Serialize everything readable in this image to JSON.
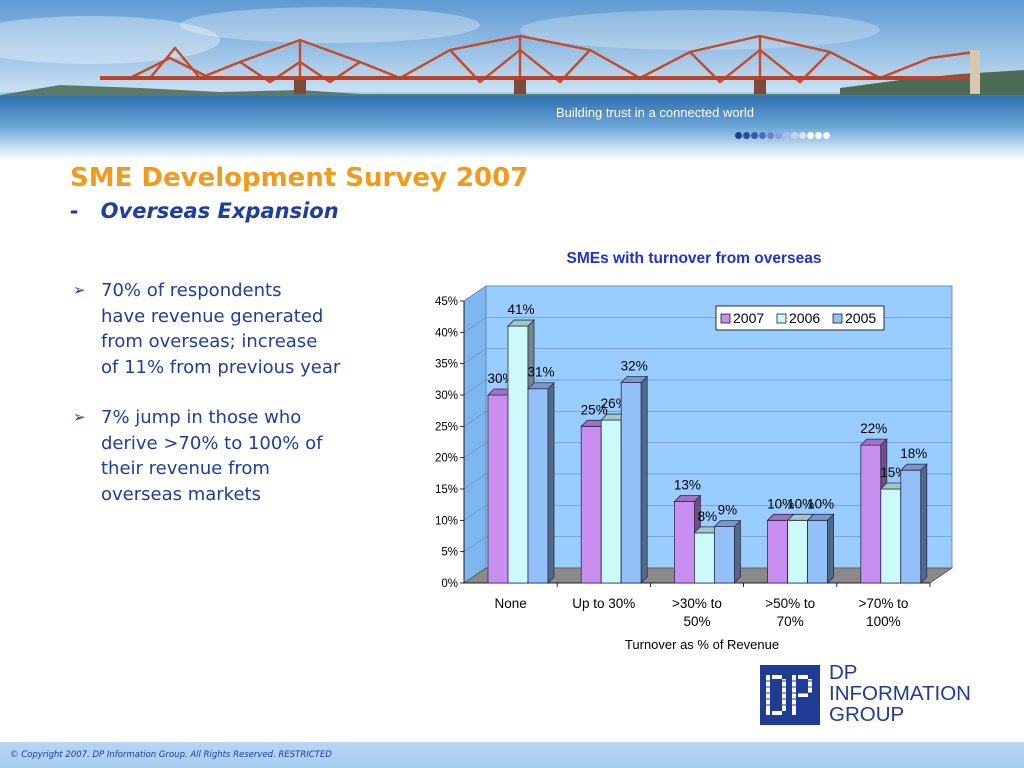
{
  "banner": {
    "tagline": "Building trust in a connected world",
    "dot_colors": [
      "#1f3b93",
      "#2a4aa0",
      "#3456ad",
      "#4c6cbc",
      "#6a86c9",
      "#8aa1d6",
      "#a9bce2",
      "#c5d3ec",
      "#dce5f4",
      "#ffffff",
      "#ffffff",
      "#ffffff"
    ]
  },
  "slide": {
    "title": "SME Development Survey 2007",
    "subtitle_dash": "-",
    "subtitle": "Overseas Expansion"
  },
  "bullets": [
    {
      "marker": "➢",
      "text": "70% of respondents\nhave revenue generated\nfrom overseas; increase\nof 11% from previous year"
    },
    {
      "marker": "➢",
      "text": "7% jump in those who\nderive >70% to 100% of\ntheir revenue from\noverseas markets"
    }
  ],
  "chart_data": {
    "type": "bar",
    "title": "SMEs with turnover from overseas",
    "xlabel": "Turnover as % of Revenue",
    "ylabel": "",
    "categories": [
      [
        "None"
      ],
      [
        "Up to 30%"
      ],
      [
        ">30% to",
        "50%"
      ],
      [
        ">50% to",
        "70%"
      ],
      [
        ">70% to",
        "100%"
      ]
    ],
    "series": [
      {
        "name": "2007",
        "values": [
          30,
          25,
          13,
          10,
          22
        ],
        "labels": [
          "30%",
          "25%",
          "13%",
          "10%",
          "22%"
        ],
        "color": "#c98ff0"
      },
      {
        "name": "2006",
        "values": [
          41,
          26,
          8,
          10,
          15
        ],
        "labels": [
          "41%",
          "26%",
          "8%",
          "10%",
          "15%"
        ],
        "color": "#ccfafa"
      },
      {
        "name": "2005",
        "values": [
          31,
          32,
          9,
          10,
          18
        ],
        "labels": [
          "31%",
          "32%",
          "9%",
          "10%",
          "18%"
        ],
        "color": "#93c1f7"
      }
    ],
    "ylim": [
      0,
      45
    ],
    "yticks": [
      "0%",
      "5%",
      "10%",
      "15%",
      "20%",
      "25%",
      "30%",
      "35%",
      "40%",
      "45%"
    ],
    "grid": true,
    "legend": "top-right",
    "plot_background": "#99ccff"
  },
  "logo": {
    "line1": "DP",
    "line2": "INFORMATION",
    "line3": "GROUP",
    "color": "#1f3b93"
  },
  "footer": {
    "text": "© Copyright 2007. DP Information Group. All Rights Reserved. RESTRICTED"
  }
}
